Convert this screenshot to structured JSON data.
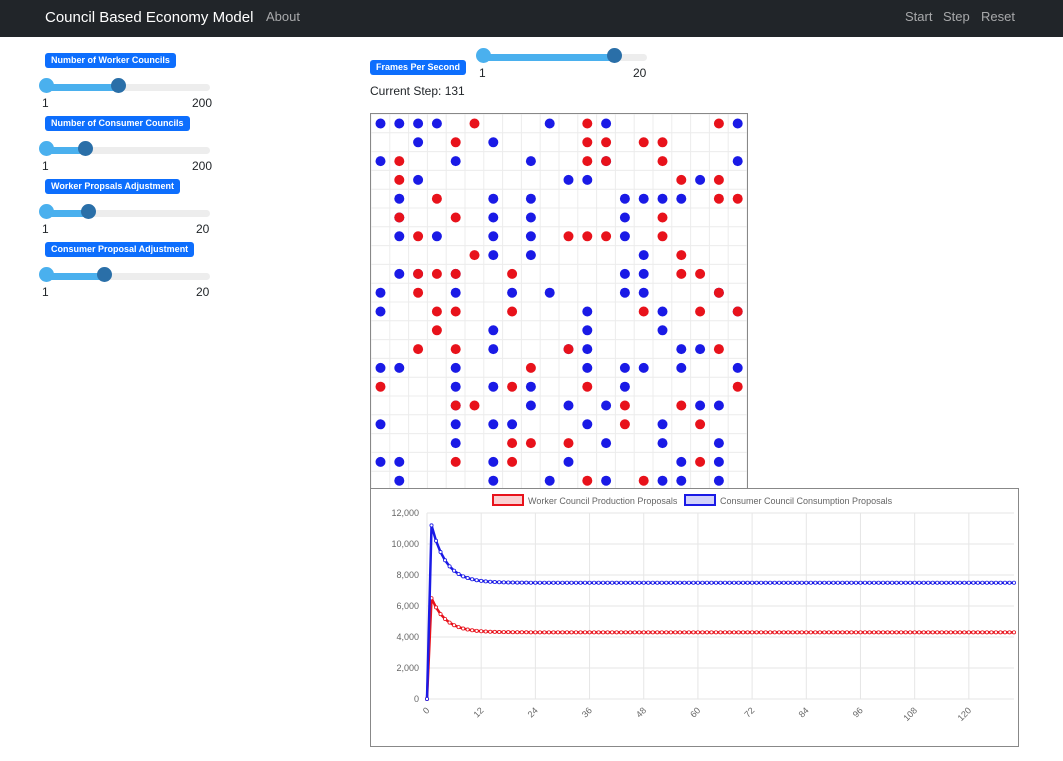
{
  "navbar": {
    "brand": "Council Based Economy Model",
    "about": "About",
    "start": "Start",
    "step": "Step",
    "reset": "Reset"
  },
  "controls": {
    "worker_councils": {
      "label": "Number of Worker Councils",
      "min": "1",
      "max": "200",
      "fraction": 0.44
    },
    "consumer_councils": {
      "label": "Number of Consumer Councils",
      "min": "1",
      "max": "200",
      "fraction": 0.24
    },
    "worker_adjust": {
      "label": "Worker Propsals Adjustment",
      "min": "1",
      "max": "20",
      "fraction": 0.26
    },
    "consumer_adjust": {
      "label": "Consumer Proposal Adjustment",
      "min": "1",
      "max": "20",
      "fraction": 0.36
    },
    "fps": {
      "label": "Frames Per Second",
      "min": "1",
      "max": "20",
      "fraction": 0.8
    }
  },
  "status": {
    "current_step": "Current Step: 131"
  },
  "colors": {
    "worker": "#e8121b",
    "consumer": "#1a1ae6",
    "accent": "#0d6efd"
  },
  "grid": {
    "size": 20,
    "red": [
      [
        5,
        1
      ],
      [
        11,
        1
      ],
      [
        18,
        1
      ],
      [
        4,
        2
      ],
      [
        11,
        2
      ],
      [
        12,
        2
      ],
      [
        14,
        2
      ],
      [
        15,
        2
      ],
      [
        1,
        3
      ],
      [
        11,
        3
      ],
      [
        12,
        3
      ],
      [
        15,
        3
      ],
      [
        1,
        4
      ],
      [
        16,
        4
      ],
      [
        18,
        4
      ],
      [
        3,
        5
      ],
      [
        18,
        5
      ],
      [
        19,
        5
      ],
      [
        1,
        6
      ],
      [
        4,
        6
      ],
      [
        15,
        6
      ],
      [
        2,
        7
      ],
      [
        10,
        7
      ],
      [
        11,
        7
      ],
      [
        12,
        7
      ],
      [
        15,
        7
      ],
      [
        5,
        8
      ],
      [
        16,
        8
      ],
      [
        2,
        9
      ],
      [
        3,
        9
      ],
      [
        4,
        9
      ],
      [
        7,
        9
      ],
      [
        16,
        9
      ],
      [
        17,
        9
      ],
      [
        2,
        10
      ],
      [
        18,
        10
      ],
      [
        3,
        11
      ],
      [
        4,
        11
      ],
      [
        7,
        11
      ],
      [
        14,
        11
      ],
      [
        17,
        11
      ],
      [
        19,
        11
      ],
      [
        3,
        12
      ],
      [
        2,
        13
      ],
      [
        4,
        13
      ],
      [
        10,
        13
      ],
      [
        18,
        13
      ],
      [
        8,
        14
      ],
      [
        0,
        15
      ],
      [
        7,
        15
      ],
      [
        11,
        15
      ],
      [
        19,
        15
      ],
      [
        4,
        16
      ],
      [
        5,
        16
      ],
      [
        13,
        16
      ],
      [
        16,
        16
      ],
      [
        13,
        17
      ],
      [
        17,
        17
      ],
      [
        7,
        18
      ],
      [
        8,
        18
      ],
      [
        10,
        18
      ],
      [
        4,
        19
      ],
      [
        7,
        19
      ],
      [
        17,
        19
      ],
      [
        11,
        20
      ],
      [
        14,
        20
      ]
    ],
    "blue": [
      [
        0,
        1
      ],
      [
        1,
        1
      ],
      [
        2,
        1
      ],
      [
        3,
        1
      ],
      [
        9,
        1
      ],
      [
        12,
        1
      ],
      [
        19,
        1
      ],
      [
        2,
        2
      ],
      [
        6,
        2
      ],
      [
        0,
        3
      ],
      [
        4,
        3
      ],
      [
        8,
        3
      ],
      [
        12,
        3
      ],
      [
        19,
        3
      ],
      [
        2,
        4
      ],
      [
        10,
        4
      ],
      [
        11,
        4
      ],
      [
        17,
        4
      ],
      [
        1,
        5
      ],
      [
        6,
        5
      ],
      [
        8,
        5
      ],
      [
        13,
        5
      ],
      [
        14,
        5
      ],
      [
        15,
        5
      ],
      [
        16,
        5
      ],
      [
        1,
        6
      ],
      [
        6,
        6
      ],
      [
        8,
        6
      ],
      [
        13,
        6
      ],
      [
        1,
        7
      ],
      [
        3,
        7
      ],
      [
        6,
        7
      ],
      [
        8,
        7
      ],
      [
        13,
        7
      ],
      [
        6,
        8
      ],
      [
        8,
        8
      ],
      [
        14,
        8
      ],
      [
        1,
        9
      ],
      [
        2,
        9
      ],
      [
        4,
        9
      ],
      [
        13,
        9
      ],
      [
        14,
        9
      ],
      [
        0,
        10
      ],
      [
        4,
        10
      ],
      [
        7,
        10
      ],
      [
        9,
        10
      ],
      [
        13,
        10
      ],
      [
        14,
        10
      ],
      [
        18,
        10
      ],
      [
        0,
        11
      ],
      [
        11,
        11
      ],
      [
        15,
        11
      ],
      [
        19,
        11
      ],
      [
        6,
        12
      ],
      [
        11,
        12
      ],
      [
        15,
        12
      ],
      [
        6,
        13
      ],
      [
        16,
        13
      ],
      [
        17,
        13
      ],
      [
        10,
        13
      ],
      [
        11,
        13
      ],
      [
        0,
        14
      ],
      [
        1,
        14
      ],
      [
        4,
        14
      ],
      [
        11,
        14
      ],
      [
        13,
        14
      ],
      [
        14,
        14
      ],
      [
        16,
        14
      ],
      [
        19,
        14
      ],
      [
        4,
        15
      ],
      [
        6,
        15
      ],
      [
        8,
        15
      ],
      [
        13,
        15
      ],
      [
        4,
        16
      ],
      [
        8,
        16
      ],
      [
        10,
        16
      ],
      [
        12,
        16
      ],
      [
        17,
        16
      ],
      [
        18,
        16
      ],
      [
        0,
        17
      ],
      [
        4,
        17
      ],
      [
        6,
        17
      ],
      [
        7,
        17
      ],
      [
        11,
        17
      ],
      [
        15,
        17
      ],
      [
        4,
        18
      ],
      [
        12,
        18
      ],
      [
        15,
        18
      ],
      [
        18,
        18
      ],
      [
        0,
        19
      ],
      [
        1,
        19
      ],
      [
        6,
        19
      ],
      [
        10,
        19
      ],
      [
        16,
        19
      ],
      [
        18,
        19
      ],
      [
        1,
        20
      ],
      [
        6,
        20
      ],
      [
        9,
        20
      ],
      [
        12,
        20
      ],
      [
        15,
        20
      ],
      [
        16,
        20
      ],
      [
        18,
        20
      ]
    ]
  },
  "chart_data": {
    "type": "line",
    "series": [
      {
        "name": "Worker Council Production Proposals",
        "color": "#e8121b",
        "peak": 6500,
        "steady": 4300
      },
      {
        "name": "Consumer Council Consumption Proposals",
        "color": "#1a1ae6",
        "peak": 11200,
        "steady": 7500
      }
    ],
    "steps": 131,
    "ylim": [
      0,
      12000
    ],
    "yticks": [
      "0",
      "2,000",
      "4,000",
      "6,000",
      "8,000",
      "10,000",
      "12,000"
    ],
    "xticks": [
      "0",
      "12",
      "24",
      "36",
      "48",
      "60",
      "72",
      "84",
      "96",
      "108",
      "120"
    ],
    "legend": "top"
  }
}
